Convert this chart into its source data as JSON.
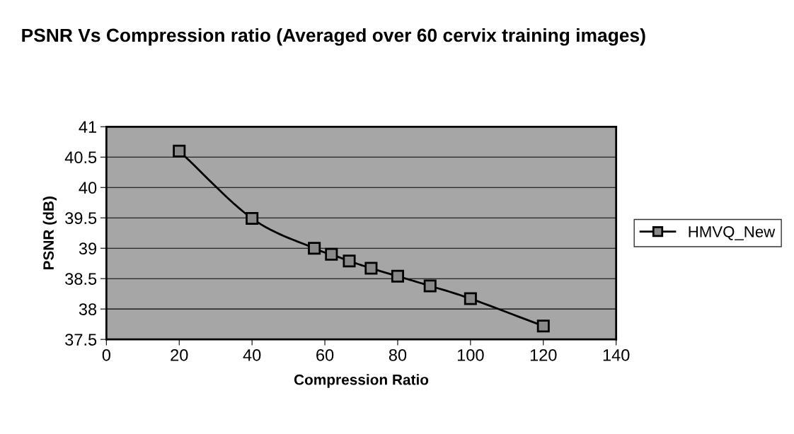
{
  "chart_data": {
    "type": "line",
    "title": "PSNR Vs Compression ratio (Averaged over 60 cervix training images)",
    "xlabel": "Compression Ratio",
    "ylabel": "PSNR (dB)",
    "series": [
      {
        "name": "HMVQ_New",
        "color": "#000000",
        "x": [
          20,
          40,
          57.1,
          61.8,
          66.7,
          72.7,
          80,
          88.9,
          100,
          120
        ],
        "values": [
          40.6,
          39.49,
          39.0,
          38.9,
          38.79,
          38.67,
          38.54,
          38.38,
          38.17,
          37.72
        ]
      }
    ],
    "xlim": [
      0,
      140
    ],
    "xticks": [
      0,
      20,
      40,
      60,
      80,
      100,
      120,
      140
    ],
    "ylim": [
      37.5,
      41
    ],
    "yticks": [
      37.5,
      38,
      38.5,
      39,
      39.5,
      40,
      40.5,
      41
    ],
    "grid": "y",
    "legend": "right",
    "marker": "square",
    "line_style": "solid"
  }
}
